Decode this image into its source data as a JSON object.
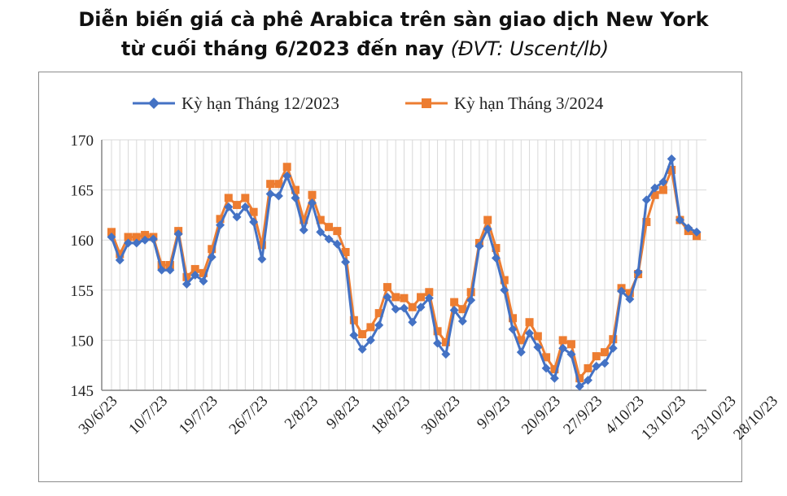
{
  "title": {
    "line1": "Diễn biến giá cà phê Arabica trên sàn giao dịch New York",
    "line2": "từ cuối tháng 6/2023 đến nay",
    "unit": "(ĐVT: Uscent/lb)"
  },
  "colors": {
    "series1": "#4472C4",
    "series2": "#ED7D31",
    "grid": "#d9d9d9",
    "axis": "#868686"
  },
  "chart_data": {
    "type": "line",
    "ylim": [
      145,
      170
    ],
    "yticks": [
      145,
      150,
      155,
      160,
      165,
      170
    ],
    "grid": true,
    "legend_position": "top",
    "x_tick_labels": [
      {
        "index": 0,
        "label": "30/6/23"
      },
      {
        "index": 6,
        "label": "10/7/23"
      },
      {
        "index": 12,
        "label": "19/7/23"
      },
      {
        "index": 18,
        "label": "26/7/23"
      },
      {
        "index": 24,
        "label": "2/8/23"
      },
      {
        "index": 29,
        "label": "9/8/23"
      },
      {
        "index": 35,
        "label": "18/8/23"
      },
      {
        "index": 41,
        "label": "30/8/23"
      },
      {
        "index": 47,
        "label": "9/9/23"
      },
      {
        "index": 53,
        "label": "20/9/23"
      },
      {
        "index": 58,
        "label": "27/9/23"
      },
      {
        "index": 63,
        "label": "4/10/23"
      },
      {
        "index": 68,
        "label": "13/10/23"
      },
      {
        "index": 74,
        "label": "23/10/23"
      },
      {
        "index": 79,
        "label": "28/10/23"
      }
    ],
    "series": [
      {
        "name": "Kỳ hạn Tháng 12/2023",
        "values": [
          160.3,
          158.0,
          159.7,
          159.7,
          160.0,
          160.1,
          157.0,
          157.0,
          160.6,
          155.6,
          156.5,
          155.9,
          158.3,
          161.5,
          163.3,
          162.3,
          163.3,
          161.8,
          158.1,
          164.6,
          164.4,
          166.4,
          164.2,
          161.0,
          163.7,
          160.8,
          160.1,
          159.6,
          157.8,
          150.5,
          149.1,
          150.0,
          151.5,
          154.3,
          153.1,
          153.2,
          151.8,
          153.3,
          154.2,
          149.7,
          148.6,
          153.0,
          151.9,
          154.0,
          159.4,
          161.1,
          158.2,
          155.0,
          151.1,
          148.8,
          150.7,
          149.3,
          147.2,
          146.2,
          149.2,
          148.6,
          145.4,
          146.0,
          147.4,
          147.7,
          149.2,
          154.9,
          154.1,
          156.8,
          164.0,
          165.2,
          165.8,
          168.1,
          162.0,
          161.2,
          160.8
        ]
      },
      {
        "name": "Kỳ hạn Tháng 3/2024",
        "values": [
          160.8,
          158.6,
          160.3,
          160.3,
          160.5,
          160.3,
          157.5,
          157.5,
          160.9,
          156.3,
          157.1,
          156.7,
          159.1,
          162.1,
          164.2,
          163.5,
          164.2,
          162.8,
          159.5,
          165.6,
          165.6,
          167.3,
          165.0,
          162.0,
          164.5,
          162.0,
          161.3,
          160.9,
          158.8,
          152.0,
          150.6,
          151.3,
          152.7,
          155.3,
          154.3,
          154.2,
          153.3,
          154.3,
          154.8,
          150.9,
          149.8,
          153.8,
          153.1,
          154.8,
          159.7,
          162.0,
          159.2,
          156.0,
          152.2,
          150.0,
          151.8,
          150.4,
          148.3,
          147.1,
          150.0,
          149.6,
          146.2,
          147.2,
          148.4,
          148.8,
          150.1,
          155.2,
          154.7,
          156.6,
          161.8,
          164.5,
          165.0,
          167.0,
          162.0,
          160.9,
          160.4
        ]
      }
    ]
  }
}
